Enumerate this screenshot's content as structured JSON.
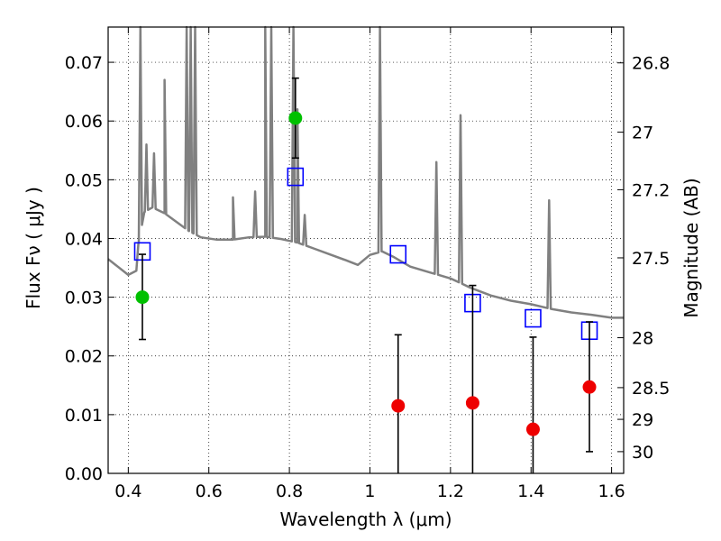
{
  "chart_data": {
    "type": "scatter",
    "xlabel": "Wavelength  λ (μm)",
    "ylabel": "Flux  Fν  ( μJy )",
    "ylabel_right": "Magnitude (AB)",
    "xlim": [
      0.35,
      1.63
    ],
    "ylim": [
      0.0,
      0.076
    ],
    "grid": true,
    "x_ticks": [
      {
        "value": 0.4,
        "label": "0.4"
      },
      {
        "value": 0.6,
        "label": "0.6"
      },
      {
        "value": 0.8,
        "label": "0.8"
      },
      {
        "value": 1.0,
        "label": "1"
      },
      {
        "value": 1.2,
        "label": "1.2"
      },
      {
        "value": 1.4,
        "label": "1.4"
      },
      {
        "value": 1.6,
        "label": "1.6"
      }
    ],
    "y_ticks": [
      {
        "value": 0.0,
        "label": "0.00"
      },
      {
        "value": 0.01,
        "label": "0.01"
      },
      {
        "value": 0.02,
        "label": "0.02"
      },
      {
        "value": 0.03,
        "label": "0.03"
      },
      {
        "value": 0.04,
        "label": "0.04"
      },
      {
        "value": 0.05,
        "label": "0.05"
      },
      {
        "value": 0.06,
        "label": "0.06"
      },
      {
        "value": 0.07,
        "label": "0.07"
      }
    ],
    "right_ticks": [
      {
        "flux": 0.0699,
        "label": "26.8"
      },
      {
        "flux": 0.0581,
        "label": "27"
      },
      {
        "flux": 0.0483,
        "label": "27.2"
      },
      {
        "flux": 0.0367,
        "label": "27.5"
      },
      {
        "flux": 0.0231,
        "label": "28"
      },
      {
        "flux": 0.0146,
        "label": "28.5"
      },
      {
        "flux": 0.0092,
        "label": "29"
      },
      {
        "flux": 0.0037,
        "label": "30"
      }
    ],
    "colors": {
      "spectrum": "#808080",
      "model_boxes": "#0000ff",
      "detections": "#00c000",
      "upper_limits": "#ee0000",
      "errorbars": "#000000"
    },
    "spectrum": {
      "continuum": [
        [
          0.35,
          0.0365
        ],
        [
          0.4,
          0.0338
        ],
        [
          0.42,
          0.0345
        ],
        [
          0.425,
          0.039
        ],
        [
          0.44,
          0.0445
        ],
        [
          0.46,
          0.0453
        ],
        [
          0.49,
          0.0443
        ],
        [
          0.52,
          0.0428
        ],
        [
          0.55,
          0.0413
        ],
        [
          0.58,
          0.0402
        ],
        [
          0.62,
          0.0398
        ],
        [
          0.66,
          0.0398
        ],
        [
          0.7,
          0.0402
        ],
        [
          0.74,
          0.0403
        ],
        [
          0.78,
          0.0399
        ],
        [
          0.82,
          0.0393
        ],
        [
          0.86,
          0.0383
        ],
        [
          0.9,
          0.0373
        ],
        [
          0.94,
          0.0363
        ],
        [
          0.97,
          0.0355
        ],
        [
          1.0,
          0.0372
        ],
        [
          1.03,
          0.0378
        ],
        [
          1.06,
          0.0368
        ],
        [
          1.1,
          0.0352
        ],
        [
          1.15,
          0.0342
        ],
        [
          1.2,
          0.0332
        ],
        [
          1.25,
          0.0316
        ],
        [
          1.3,
          0.0303
        ],
        [
          1.35,
          0.0294
        ],
        [
          1.4,
          0.0288
        ],
        [
          1.45,
          0.028
        ],
        [
          1.5,
          0.0274
        ],
        [
          1.55,
          0.027
        ],
        [
          1.6,
          0.0265
        ],
        [
          1.63,
          0.0265
        ]
      ],
      "lines": [
        [
          0.43,
          0.076
        ],
        [
          0.445,
          0.056
        ],
        [
          0.464,
          0.0545
        ],
        [
          0.49,
          0.067
        ],
        [
          0.545,
          0.076
        ],
        [
          0.555,
          0.076
        ],
        [
          0.566,
          0.076
        ],
        [
          0.66,
          0.047
        ],
        [
          0.715,
          0.048
        ],
        [
          0.74,
          0.076
        ],
        [
          0.755,
          0.076
        ],
        [
          0.81,
          0.076
        ],
        [
          0.82,
          0.062
        ],
        [
          0.838,
          0.044
        ],
        [
          1.025,
          0.076
        ],
        [
          1.165,
          0.053
        ],
        [
          1.225,
          0.061
        ],
        [
          1.445,
          0.0465
        ]
      ]
    },
    "series": [
      {
        "marker": "open-square",
        "color": "#0000ff",
        "points": [
          [
            0.435,
            0.0378
          ],
          [
            0.815,
            0.0505
          ],
          [
            1.07,
            0.0373
          ],
          [
            1.255,
            0.029
          ],
          [
            1.405,
            0.0264
          ],
          [
            1.545,
            0.0243
          ]
        ]
      },
      {
        "marker": "filled-circle",
        "color": "#00c000",
        "points": [
          {
            "x": 0.435,
            "y": 0.03,
            "lo": 0.0228,
            "hi": 0.0373
          },
          {
            "x": 0.815,
            "y": 0.0605,
            "lo": 0.0537,
            "hi": 0.0673
          }
        ]
      },
      {
        "marker": "filled-circle",
        "color": "#ee0000",
        "points": [
          {
            "x": 1.07,
            "y": 0.0115,
            "lo": 0.0,
            "hi": 0.0236
          },
          {
            "x": 1.255,
            "y": 0.012,
            "lo": 0.0,
            "hi": 0.032
          },
          {
            "x": 1.405,
            "y": 0.0075,
            "lo": 0.0,
            "hi": 0.0232
          },
          {
            "x": 1.545,
            "y": 0.0147,
            "lo": 0.0037,
            "hi": 0.0258
          }
        ]
      }
    ]
  }
}
